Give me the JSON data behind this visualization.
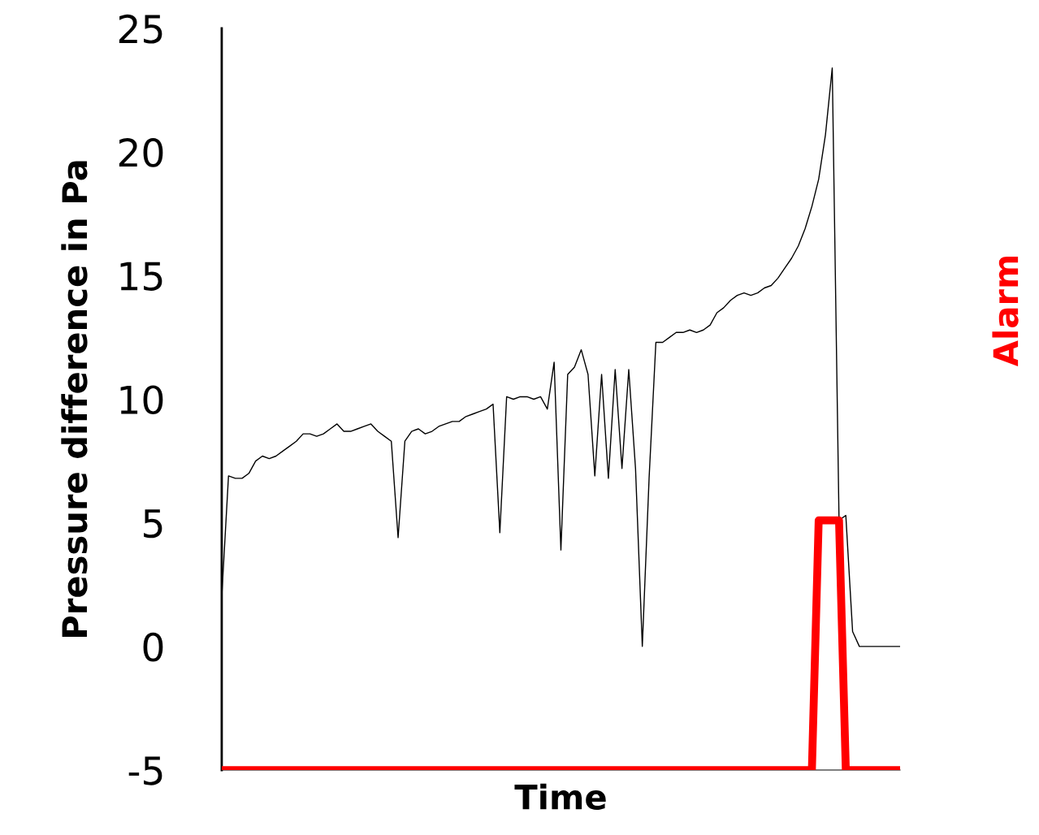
{
  "chart_data": {
    "type": "line",
    "xlabel": "Time",
    "ylabel": "Pressure difference in Pa",
    "categories": [
      null,
      null,
      null,
      null,
      null,
      null,
      null,
      null,
      null,
      null,
      null,
      null,
      null,
      null,
      null,
      null,
      null,
      null,
      null,
      null,
      null,
      null,
      null,
      null,
      null,
      null,
      null,
      null,
      null,
      null,
      null,
      null,
      null,
      null,
      null,
      null,
      null,
      null,
      null,
      null,
      null,
      null,
      null,
      null,
      null,
      null,
      null,
      null,
      null,
      null,
      null,
      null,
      null,
      null,
      null,
      null,
      null,
      null,
      null,
      null,
      null,
      null,
      null,
      null,
      null,
      null,
      null,
      null,
      null,
      null,
      null,
      null,
      null,
      null,
      null,
      null,
      null,
      null,
      null,
      null,
      null,
      null,
      null,
      null,
      null,
      null,
      null,
      null,
      null,
      null,
      null,
      null,
      null,
      null,
      null,
      null,
      null,
      null,
      null,
      null,
      null
    ],
    "ylim": [
      -5,
      25
    ],
    "yticks": [
      -5,
      0,
      5,
      10,
      15,
      20,
      25
    ],
    "tick_labels": "y",
    "grid": false,
    "legend": false,
    "series": [
      {
        "color": "#000000",
        "values": [
          2.0,
          6.9,
          6.8,
          6.8,
          7.0,
          7.5,
          7.7,
          7.6,
          7.7,
          7.9,
          8.1,
          8.3,
          8.6,
          8.6,
          8.5,
          8.6,
          8.8,
          9.0,
          8.7,
          8.7,
          8.8,
          8.9,
          9.0,
          8.7,
          8.5,
          8.3,
          4.4,
          8.3,
          8.7,
          8.8,
          8.6,
          8.7,
          8.9,
          9.0,
          9.1,
          9.1,
          9.3,
          9.4,
          9.5,
          9.6,
          9.8,
          4.6,
          10.1,
          10.0,
          10.1,
          10.1,
          10.0,
          10.1,
          9.6,
          11.5,
          3.9,
          11.0,
          11.3,
          12.0,
          11.0,
          6.9,
          11.0,
          6.8,
          11.2,
          7.2,
          11.2,
          7.2,
          0.0,
          6.8,
          12.3,
          12.3,
          12.5,
          12.7,
          12.7,
          12.8,
          12.7,
          12.8,
          13.0,
          13.5,
          13.7,
          14.0,
          14.2,
          14.3,
          14.2,
          14.3,
          14.5,
          14.6,
          14.9,
          15.3,
          15.7,
          16.2,
          16.9,
          17.8,
          18.9,
          20.7,
          23.4,
          5.1,
          5.3,
          0.6,
          0.0,
          0.0,
          0.0,
          0.0,
          0.0,
          0.0,
          0.0
        ]
      },
      {
        "name": "Alarm",
        "color": "#ff0000",
        "values": [
          -5,
          -5,
          -5,
          -5,
          -5,
          -5,
          -5,
          -5,
          -5,
          -5,
          -5,
          -5,
          -5,
          -5,
          -5,
          -5,
          -5,
          -5,
          -5,
          -5,
          -5,
          -5,
          -5,
          -5,
          -5,
          -5,
          -5,
          -5,
          -5,
          -5,
          -5,
          -5,
          -5,
          -5,
          -5,
          -5,
          -5,
          -5,
          -5,
          -5,
          -5,
          -5,
          -5,
          -5,
          -5,
          -5,
          -5,
          -5,
          -5,
          -5,
          -5,
          -5,
          -5,
          -5,
          -5,
          -5,
          -5,
          -5,
          -5,
          -5,
          -5,
          -5,
          -5,
          -5,
          -5,
          -5,
          -5,
          -5,
          -5,
          -5,
          -5,
          -5,
          -5,
          -5,
          -5,
          -5,
          -5,
          -5,
          -5,
          -5,
          -5,
          -5,
          -5,
          -5,
          -5,
          -5,
          -5,
          -5,
          5.1,
          5.1,
          5.1,
          5.1,
          -5,
          -5,
          -5,
          -5,
          -5,
          -5,
          -5,
          -5,
          -5
        ]
      }
    ]
  }
}
